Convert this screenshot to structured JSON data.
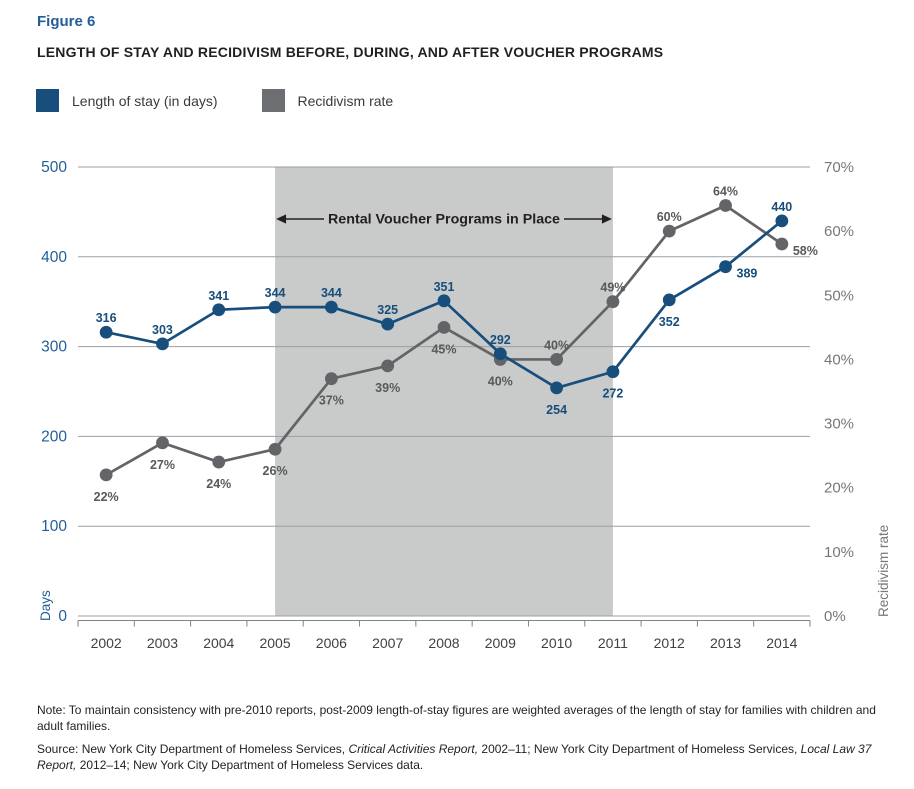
{
  "header": {
    "figure_label": "Figure 6",
    "title": "LENGTH OF STAY AND RECIDIVISM BEFORE, DURING, AND AFTER VOUCHER PROGRAMS"
  },
  "legend": {
    "items": [
      {
        "label": "Length of stay (in days)",
        "color": "#174e7c"
      },
      {
        "label": "Recidivism rate",
        "color": "#6d6e71"
      }
    ]
  },
  "chart_data": {
    "type": "line",
    "categories": [
      "2002",
      "2003",
      "2004",
      "2005",
      "2006",
      "2007",
      "2008",
      "2009",
      "2010",
      "2011",
      "2012",
      "2013",
      "2014"
    ],
    "series": [
      {
        "name": "Length of stay (in days)",
        "axis": "left",
        "color": "#174e7c",
        "values": [
          316,
          303,
          341,
          344,
          344,
          325,
          351,
          292,
          254,
          272,
          352,
          389,
          440
        ],
        "labels": [
          "316",
          "303",
          "341",
          "344",
          "344",
          "325",
          "351",
          "292",
          "254",
          "272",
          "352",
          "389",
          "440"
        ],
        "label_positions": [
          "above",
          "above",
          "above",
          "above",
          "above",
          "above",
          "above",
          "above",
          "below",
          "below",
          "below",
          "right",
          "above"
        ]
      },
      {
        "name": "Recidivism rate",
        "axis": "right",
        "color": "#626467",
        "values": [
          22,
          27,
          24,
          26,
          37,
          39,
          45,
          40,
          40,
          49,
          60,
          64,
          58
        ],
        "labels": [
          "22%",
          "27%",
          "24%",
          "26%",
          "37%",
          "39%",
          "45%",
          "40%",
          "40%",
          "49%",
          "60%",
          "64%",
          "58%"
        ],
        "label_positions": [
          "below",
          "below",
          "below",
          "below",
          "below",
          "below",
          "below",
          "below",
          "above",
          "above",
          "above",
          "above",
          "right"
        ]
      }
    ],
    "left_axis": {
      "title": "Days",
      "min": 0,
      "max": 500,
      "ticks": [
        "0",
        "100",
        "200",
        "300",
        "400",
        "500"
      ]
    },
    "right_axis": {
      "title": "Recidivism rate",
      "min": 0,
      "max": 70,
      "ticks": [
        "0%",
        "10%",
        "20%",
        "30%",
        "40%",
        "50%",
        "60%",
        "70%"
      ]
    },
    "shaded_region": {
      "from": "2005",
      "to": "2011",
      "label": "Rental Voucher Programs in Place",
      "color": "#c9caca"
    },
    "grid": true,
    "legend_position": "top-left"
  },
  "footer": {
    "note": "Note: To maintain consistency with pre-2010 reports, post-2009 length-of-stay figures are weighted averages of the length of stay for families with children and adult families.",
    "source_segments": [
      {
        "text": "Source: New York City Department of Homeless Services, ",
        "italic": false
      },
      {
        "text": "Critical Activities Report,",
        "italic": true
      },
      {
        "text": " 2002–11; New York City Department of Homeless Services, ",
        "italic": false
      },
      {
        "text": "Local Law 37 Report,",
        "italic": true
      },
      {
        "text": " 2012–14; New York City Department of Homeless Services data.",
        "italic": false
      }
    ]
  },
  "colors": {
    "text_blue": "#235e99",
    "data_label_gray": "#58595b",
    "axis_right_text": "#77787b",
    "year_text": "#414042",
    "gridline": "#9d9fa2",
    "axis_line": "#808285",
    "annotation": "#231f20"
  }
}
